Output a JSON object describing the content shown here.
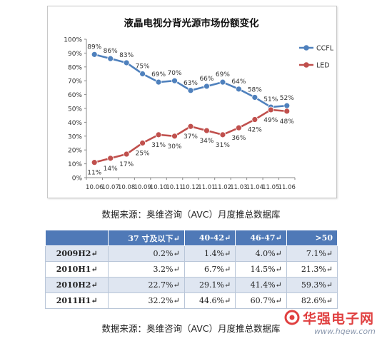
{
  "chart_data": {
    "type": "line",
    "title": "液晶电视分背光源市场份额变化",
    "categories": [
      "10.06",
      "10.07",
      "10.08",
      "10.09",
      "10.10",
      "10.11",
      "10.12",
      "11.01",
      "11.02",
      "11.03",
      "11.04",
      "11.05",
      "11.06"
    ],
    "yticks": [
      "0%",
      "10%",
      "20%",
      "30%",
      "40%",
      "50%",
      "60%",
      "70%",
      "80%",
      "90%",
      "100%"
    ],
    "ylim": [
      0,
      100
    ],
    "legend_position": "right",
    "series": [
      {
        "name": "CCFL",
        "color": "#4f81bd",
        "values": [
          89,
          86,
          83,
          75,
          69,
          70,
          63,
          66,
          69,
          64,
          58,
          51,
          52
        ],
        "labels": [
          "89%",
          "86%",
          "83%",
          "75%",
          "69%",
          "70%",
          "63%",
          "66%",
          "69%",
          "64%",
          "58%",
          "51%",
          "52%"
        ]
      },
      {
        "name": "LED",
        "color": "#c0504d",
        "values": [
          11,
          14,
          17,
          25,
          31,
          30,
          37,
          34,
          31,
          36,
          42,
          49,
          48
        ],
        "labels": [
          "11%",
          "14%",
          "17%",
          "25%",
          "31%",
          "30%",
          "37%",
          "34%",
          "31%",
          "36%",
          "42%",
          "49%",
          "48%"
        ]
      }
    ]
  },
  "caption_top": "数据来源：奥维咨询（AVC）月度推总数据库",
  "table": {
    "header": [
      "",
      "37 寸及以下↵",
      "40-42↵",
      "46-47↵",
      ">50"
    ],
    "rows": [
      [
        "2009H2↵",
        "0.2%↵",
        "1.4%↵",
        "4.0%↵",
        "7.1%↵"
      ],
      [
        "2010H1↵",
        "3.2%↵",
        "6.7%↵",
        "14.5%↵",
        "21.3%↵"
      ],
      [
        "2010H2↵",
        "22.7%↵",
        "29.1%↵",
        "41.4%↵",
        "59.3%↵"
      ],
      [
        "2011H1↵",
        "32.2%↵",
        "44.6%↵",
        "60.7%↵",
        "82.6%↵"
      ]
    ]
  },
  "caption_bottom": "数据来源：奥维咨询（AVC）月度推总数据库",
  "watermark": {
    "title": "华强电子网",
    "url": "www.hqew.com",
    "logo_color": "#e04040"
  }
}
